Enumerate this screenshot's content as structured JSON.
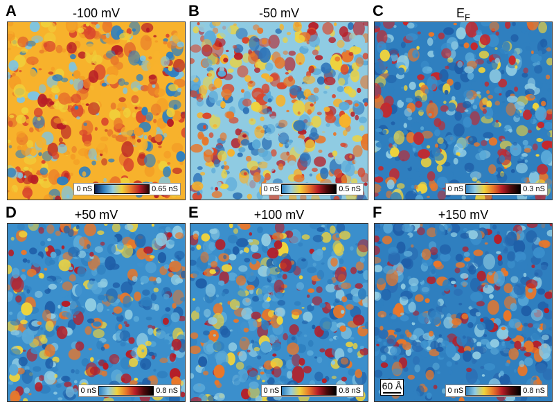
{
  "panels": [
    {
      "letter": "A",
      "title": "-100 mV",
      "legend_min": "0 nS",
      "legend_max": "0.65 nS",
      "colormap": "dark",
      "palette": [
        "#f7b22c",
        "#f39b25",
        "#e8772a",
        "#d9472c",
        "#f0cf3a",
        "#b71d26",
        "#7fc4e0",
        "#2f7fbf"
      ]
    },
    {
      "letter": "B",
      "title": "-50 mV",
      "legend_min": "0 nS",
      "legend_max": "0.5 nS",
      "colormap": "bright",
      "palette": [
        "#8fcbe2",
        "#5aa9d8",
        "#f0d33b",
        "#f7b22c",
        "#e8772a",
        "#d9472c",
        "#b71d26",
        "#2f74b8"
      ]
    },
    {
      "letter": "C",
      "title": "E",
      "title_sub": "F",
      "legend_min": "0 nS",
      "legend_max": "0.3 nS",
      "colormap": "bright",
      "palette": [
        "#2f7fbf",
        "#3b8fcc",
        "#5aa9d8",
        "#1f5fa8",
        "#8fcbe2",
        "#f0d33b",
        "#e8772a",
        "#c6282c"
      ]
    },
    {
      "letter": "D",
      "title": "+50 mV",
      "legend_min": "0 nS",
      "legend_max": "0.8 nS",
      "colormap": "bright",
      "palette": [
        "#3b8fcc",
        "#2f7fbf",
        "#5aa9d8",
        "#8fcbe2",
        "#1f5fa8",
        "#f0d33b",
        "#e8772a",
        "#b71d26"
      ]
    },
    {
      "letter": "E",
      "title": "+100 mV",
      "legend_min": "0 nS",
      "legend_max": "0.8 nS",
      "colormap": "bright",
      "palette": [
        "#3b8fcc",
        "#5aa9d8",
        "#2f7fbf",
        "#8fcbe2",
        "#1f5fa8",
        "#f0d33b",
        "#e8772a",
        "#b71d26"
      ]
    },
    {
      "letter": "F",
      "title": "+150 mV",
      "legend_min": "0 nS",
      "legend_max": "0.8 nS",
      "colormap": "bright",
      "palette": [
        "#2f7fbf",
        "#3b8fcc",
        "#1f5fa8",
        "#5aa9d8",
        "#8fcbe2",
        "#2a6db3",
        "#e8772a",
        "#b71d26"
      ],
      "scalebar": "60 Å"
    }
  ],
  "colormaps": {
    "dark": [
      "#0b1a4a",
      "#2f7fbf",
      "#8fcbe2",
      "#f0d33b",
      "#e8772a",
      "#b71d26",
      "#2a0808"
    ],
    "bright": [
      "#2f7fbf",
      "#8fcbe2",
      "#f0d33b",
      "#e8772a",
      "#b71d26",
      "#4a0a0a",
      "#000000"
    ]
  }
}
